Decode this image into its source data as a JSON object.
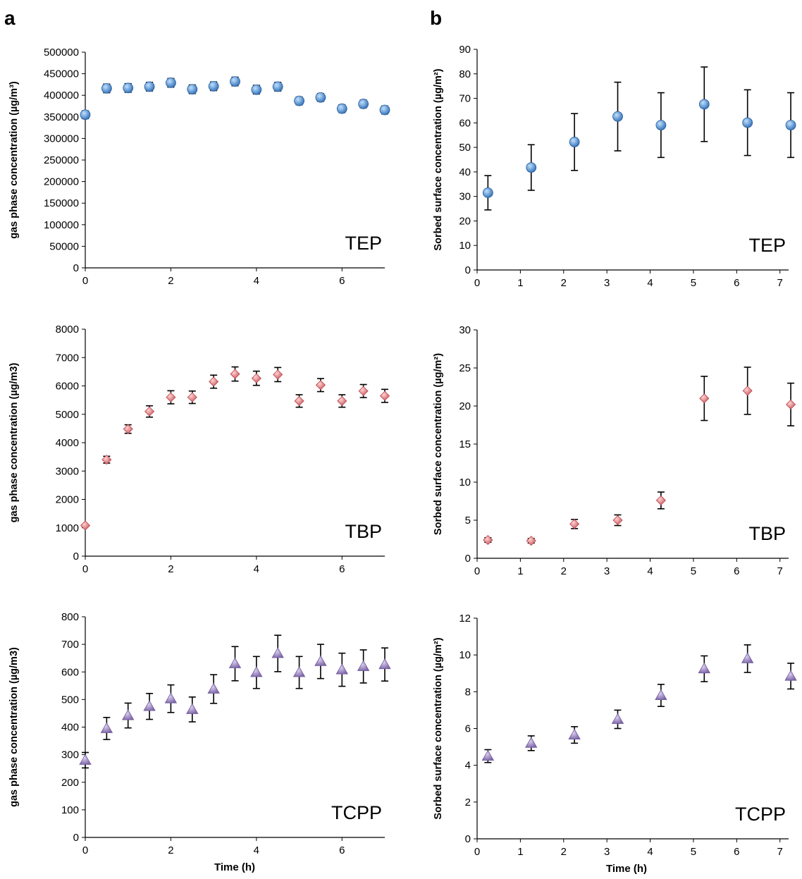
{
  "panel_letters": [
    "a",
    "b"
  ],
  "colors": {
    "TEP": "#5b9bd5",
    "TBP": "#e8858a",
    "TCPP": "#a58fc8",
    "errorbar": "#000000"
  },
  "chart_data": [
    {
      "id": "a-TEP",
      "type": "scatter",
      "marker": "circle",
      "label": "TEP",
      "ylabel": "gas phase concentration (µg/m³)",
      "xlabel": "",
      "xlim": [
        0,
        7
      ],
      "ylim": [
        0,
        500000
      ],
      "xticks": [
        0,
        2,
        4,
        6
      ],
      "yticks": [
        0,
        50000,
        100000,
        150000,
        200000,
        250000,
        300000,
        350000,
        400000,
        450000,
        500000
      ],
      "x": [
        0,
        0.5,
        1,
        1.5,
        2,
        2.5,
        3,
        3.5,
        4,
        4.5,
        5,
        5.5,
        6,
        6.5,
        7
      ],
      "y": [
        355000,
        416000,
        417000,
        420000,
        429000,
        414000,
        421000,
        432000,
        413000,
        420000,
        387000,
        395000,
        369000,
        380000,
        366000
      ],
      "err": [
        9000,
        10000,
        10000,
        10000,
        10000,
        10000,
        10000,
        10000,
        10000,
        10000,
        9000,
        9000,
        9000,
        9000,
        9000
      ]
    },
    {
      "id": "a-TBP",
      "type": "scatter",
      "marker": "diamond",
      "label": "TBP",
      "ylabel": "gas phase concentration (µg/m3)",
      "xlabel": "",
      "xlim": [
        0,
        7
      ],
      "ylim": [
        0,
        8000
      ],
      "xticks": [
        0,
        2,
        4,
        6
      ],
      "yticks": [
        0,
        1000,
        2000,
        3000,
        4000,
        5000,
        6000,
        7000,
        8000
      ],
      "x": [
        0,
        0.5,
        1,
        1.5,
        2,
        2.5,
        3,
        3.5,
        4,
        4.5,
        5,
        5.5,
        6,
        6.5,
        7
      ],
      "y": [
        1080,
        3400,
        4480,
        5100,
        5600,
        5600,
        6150,
        6420,
        6270,
        6400,
        5470,
        6030,
        5470,
        5820,
        5650
      ],
      "err": [
        0,
        120,
        150,
        200,
        230,
        220,
        230,
        250,
        250,
        250,
        220,
        230,
        220,
        230,
        230
      ]
    },
    {
      "id": "a-TCPP",
      "type": "scatter",
      "marker": "triangle",
      "label": "TCPP",
      "ylabel": "gas phase concentration (µg/m3)",
      "xlabel": "Time (h)",
      "xlim": [
        0,
        7
      ],
      "ylim": [
        0,
        800
      ],
      "xticks": [
        0,
        2,
        4,
        6
      ],
      "yticks": [
        0,
        100,
        200,
        300,
        400,
        500,
        600,
        700,
        800
      ],
      "x": [
        0,
        0.5,
        1,
        1.5,
        2,
        2.5,
        3,
        3.5,
        4,
        4.5,
        5,
        5.5,
        6,
        6.5,
        7
      ],
      "y": [
        280,
        395,
        442,
        475,
        503,
        464,
        538,
        630,
        598,
        667,
        598,
        638,
        608,
        620,
        627
      ],
      "err": [
        28,
        40,
        45,
        47,
        50,
        45,
        52,
        62,
        58,
        66,
        58,
        62,
        60,
        60,
        60
      ]
    },
    {
      "id": "b-TEP",
      "type": "scatter",
      "marker": "circle",
      "label": "TEP",
      "ylabel": "Sorbed surface concentration (µg/m²)",
      "xlabel": "",
      "xlim": [
        0,
        7.2
      ],
      "ylim": [
        0,
        90
      ],
      "xticks": [
        0,
        1,
        2,
        3,
        4,
        5,
        6,
        7
      ],
      "yticks": [
        0,
        10,
        20,
        30,
        40,
        50,
        60,
        70,
        80,
        90
      ],
      "x": [
        0.25,
        1.25,
        2.25,
        3.25,
        4.25,
        5.25,
        6.25,
        7.25
      ],
      "y": [
        31.5,
        41.8,
        52.2,
        62.6,
        59.1,
        67.6,
        60.1,
        59.1
      ],
      "err": [
        7,
        9.3,
        11.6,
        14,
        13.2,
        15.2,
        13.4,
        13.2
      ]
    },
    {
      "id": "b-TBP",
      "type": "scatter",
      "marker": "diamond",
      "label": "TBP",
      "ylabel": "Sorbed surface concentration (µg/m²)",
      "xlabel": "",
      "xlim": [
        0,
        7.2
      ],
      "ylim": [
        0,
        30
      ],
      "xticks": [
        0,
        1,
        2,
        3,
        4,
        5,
        6,
        7
      ],
      "yticks": [
        0,
        5,
        10,
        15,
        20,
        25,
        30
      ],
      "x": [
        0.25,
        1.25,
        2.25,
        3.25,
        4.25,
        5.25,
        6.25,
        7.25
      ],
      "y": [
        2.4,
        2.3,
        4.5,
        5.0,
        7.6,
        21.0,
        22.0,
        20.2
      ],
      "err": [
        0.3,
        0.3,
        0.6,
        0.7,
        1.1,
        2.9,
        3.1,
        2.8
      ]
    },
    {
      "id": "b-TCPP",
      "type": "scatter",
      "marker": "triangle",
      "label": "TCPP",
      "ylabel": "Sorbed surface concentration (µg/m²)",
      "xlabel": "Time (h)",
      "xlim": [
        0,
        7.2
      ],
      "ylim": [
        0,
        12
      ],
      "xticks": [
        0,
        1,
        2,
        3,
        4,
        5,
        6,
        7
      ],
      "yticks": [
        0,
        2,
        4,
        6,
        8,
        10,
        12
      ],
      "x": [
        0.25,
        1.25,
        2.25,
        3.25,
        4.25,
        5.25,
        6.25,
        7.25
      ],
      "y": [
        4.5,
        5.2,
        5.65,
        6.5,
        7.8,
        9.25,
        9.8,
        8.85
      ],
      "err": [
        0.35,
        0.4,
        0.45,
        0.5,
        0.6,
        0.7,
        0.75,
        0.7
      ]
    }
  ]
}
